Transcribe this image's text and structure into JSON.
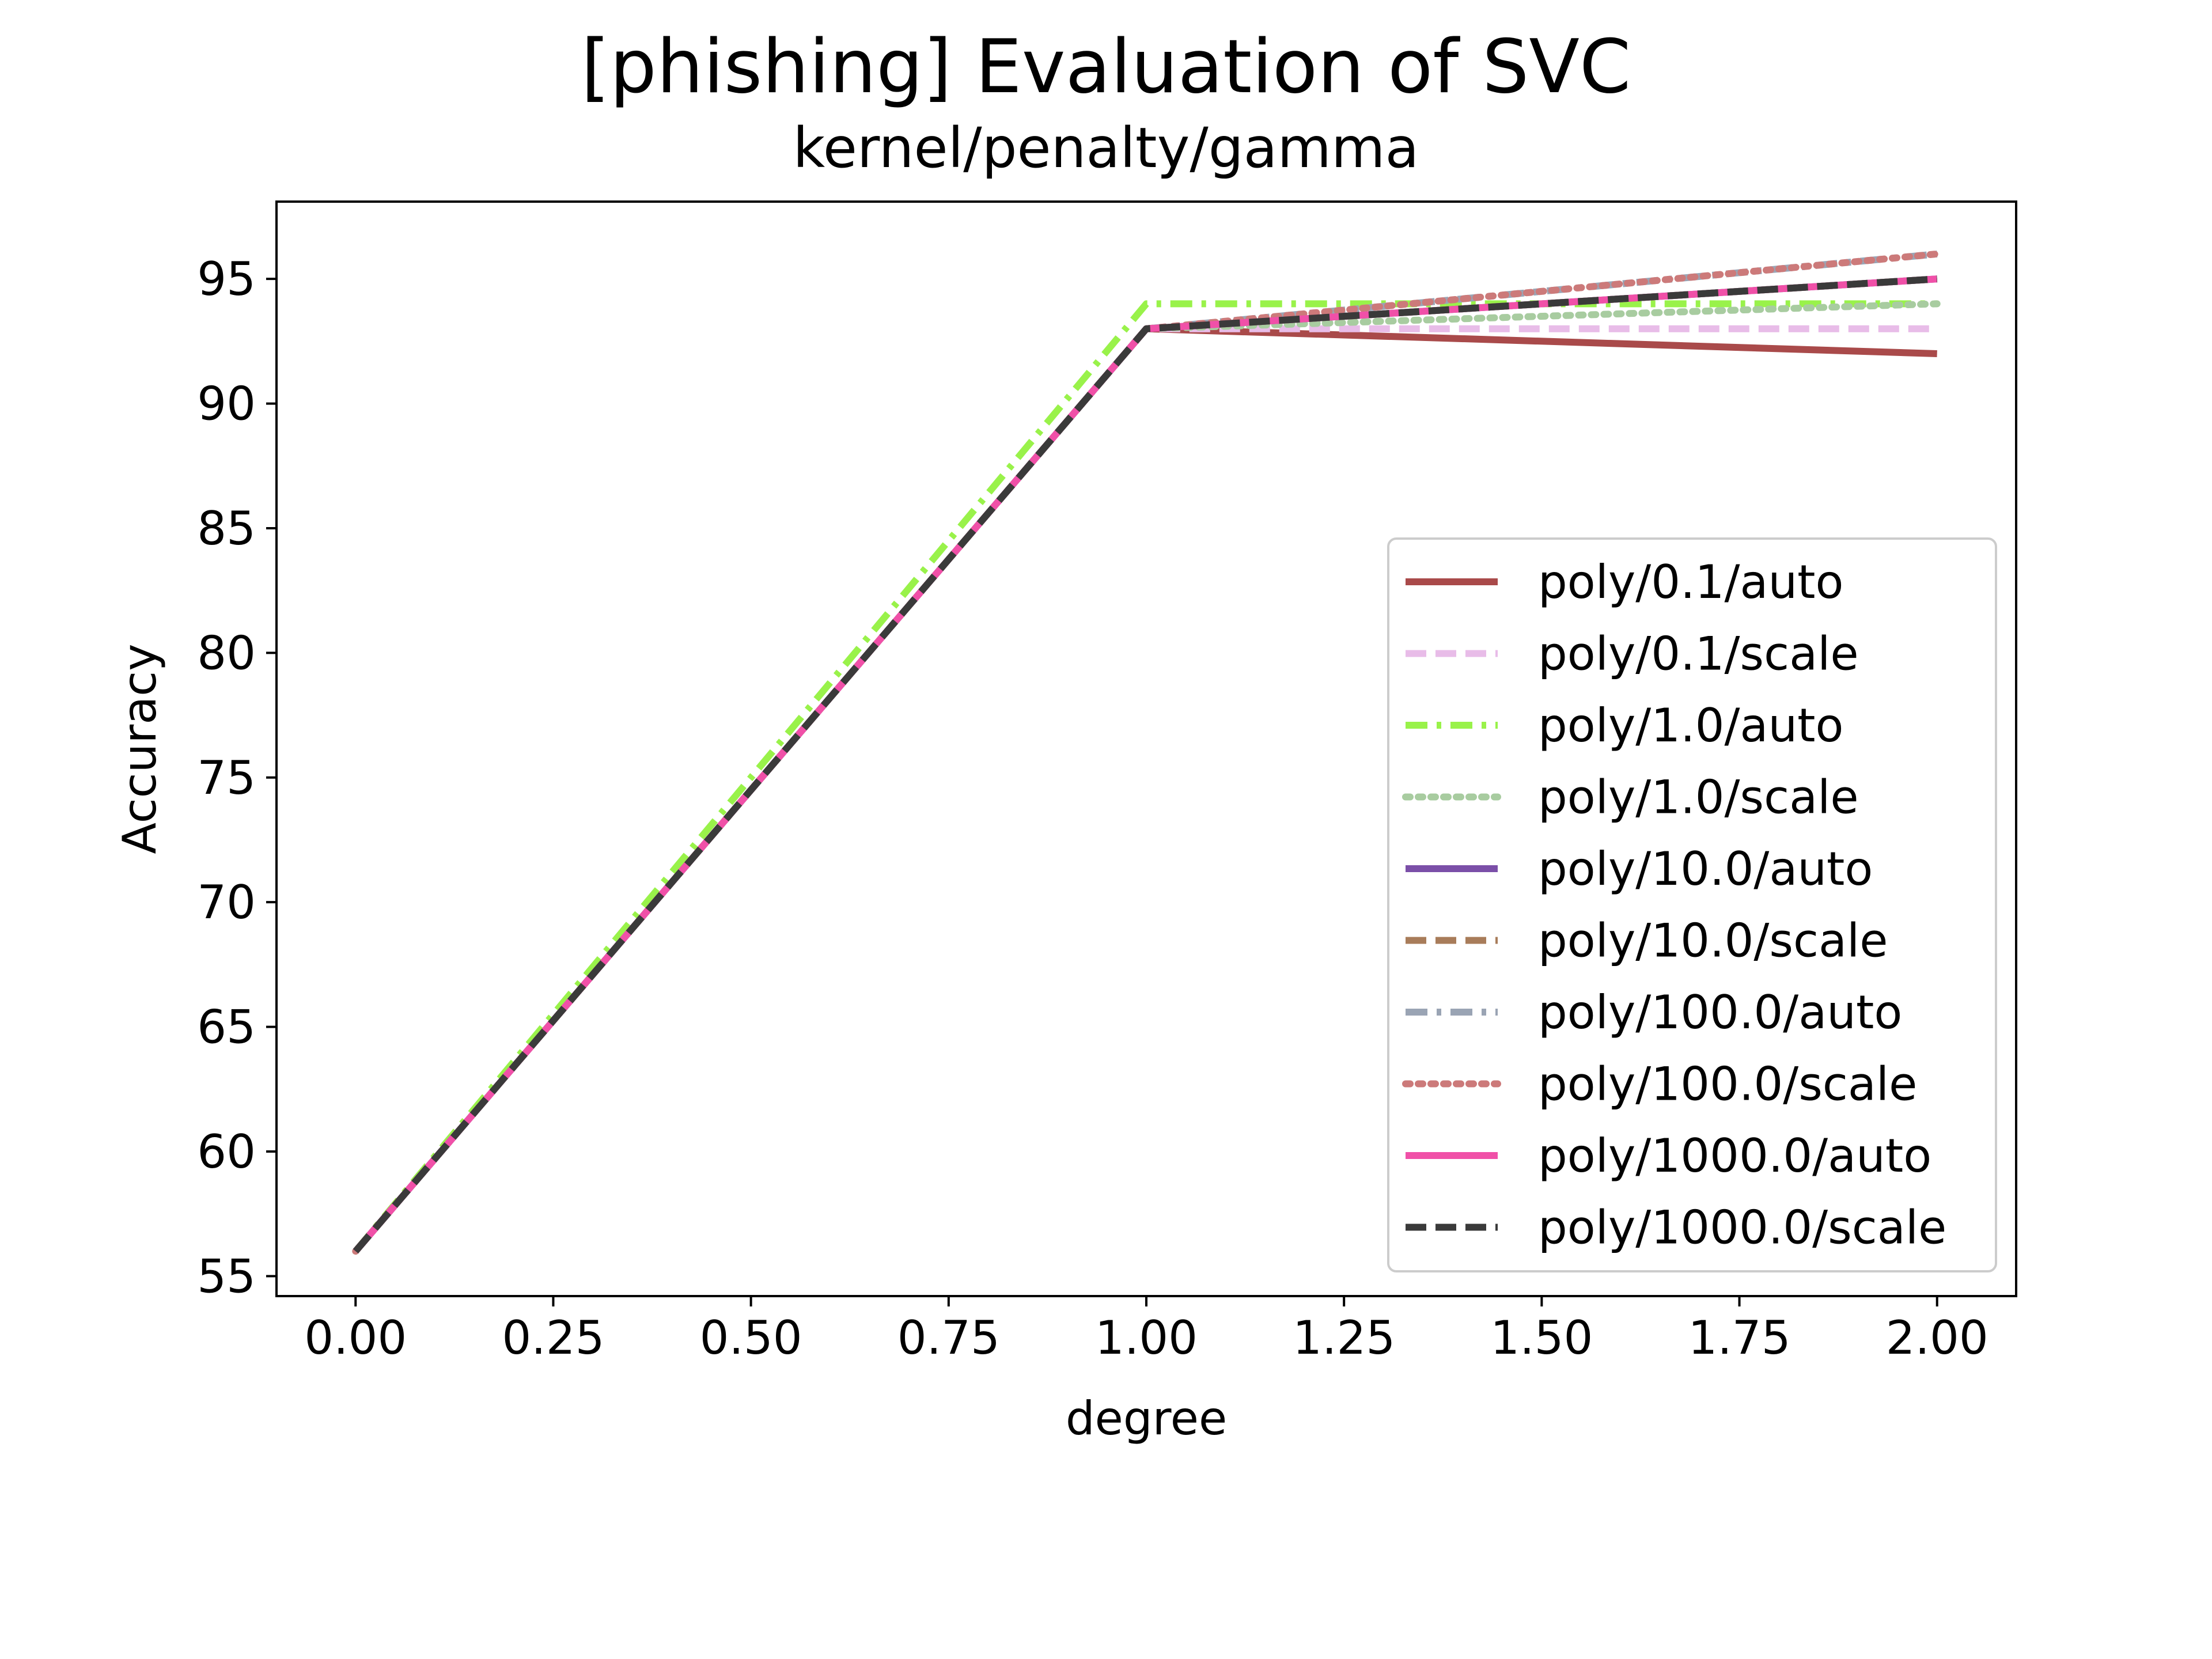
{
  "chart_data": {
    "type": "line",
    "title": "[phishing] Evaluation of SVC",
    "subtitle": "kernel/penalty/gamma",
    "xlabel": "degree",
    "ylabel": "Accuracy",
    "xlim": [
      -0.1,
      2.1
    ],
    "ylim": [
      54.2,
      98.1
    ],
    "xticks": [
      0.0,
      0.25,
      0.5,
      0.75,
      1.0,
      1.25,
      1.5,
      1.75,
      2.0
    ],
    "xtick_labels": [
      "0.00",
      "0.25",
      "0.50",
      "0.75",
      "1.00",
      "1.25",
      "1.50",
      "1.75",
      "2.00"
    ],
    "yticks": [
      55,
      60,
      65,
      70,
      75,
      80,
      85,
      90,
      95
    ],
    "ytick_labels": [
      "55",
      "60",
      "65",
      "70",
      "75",
      "80",
      "85",
      "90",
      "95"
    ],
    "grid": false,
    "legend_position": "center-right",
    "x": [
      0,
      1,
      2
    ],
    "series": [
      {
        "name": "poly/0.1/auto",
        "values": [
          56,
          93,
          92
        ],
        "color": "#a94a4a",
        "dash": "solid"
      },
      {
        "name": "poly/0.1/scale",
        "values": [
          56,
          93,
          93
        ],
        "color": "#e8bce8",
        "dash": "dashed"
      },
      {
        "name": "poly/1.0/auto",
        "values": [
          56,
          94,
          94
        ],
        "color": "#99f24a",
        "dash": "dashdot"
      },
      {
        "name": "poly/1.0/scale",
        "values": [
          56,
          93,
          94
        ],
        "color": "#a8cca0",
        "dash": "dotted"
      },
      {
        "name": "poly/10.0/auto",
        "values": [
          56,
          93,
          95
        ],
        "color": "#7b4fa8",
        "dash": "solid"
      },
      {
        "name": "poly/10.0/scale",
        "values": [
          56,
          93,
          95
        ],
        "color": "#a87c5a",
        "dash": "dashed"
      },
      {
        "name": "poly/100.0/auto",
        "values": [
          56,
          93,
          96
        ],
        "color": "#9aa4b4",
        "dash": "dashdot"
      },
      {
        "name": "poly/100.0/scale",
        "values": [
          56,
          93,
          96
        ],
        "color": "#cc7a7a",
        "dash": "dotted"
      },
      {
        "name": "poly/1000.0/auto",
        "values": [
          56,
          93,
          95
        ],
        "color": "#f050a8",
        "dash": "solid"
      },
      {
        "name": "poly/1000.0/scale",
        "values": [
          56,
          93,
          95
        ],
        "color": "#3a3a3a",
        "dash": "dashed"
      }
    ]
  }
}
